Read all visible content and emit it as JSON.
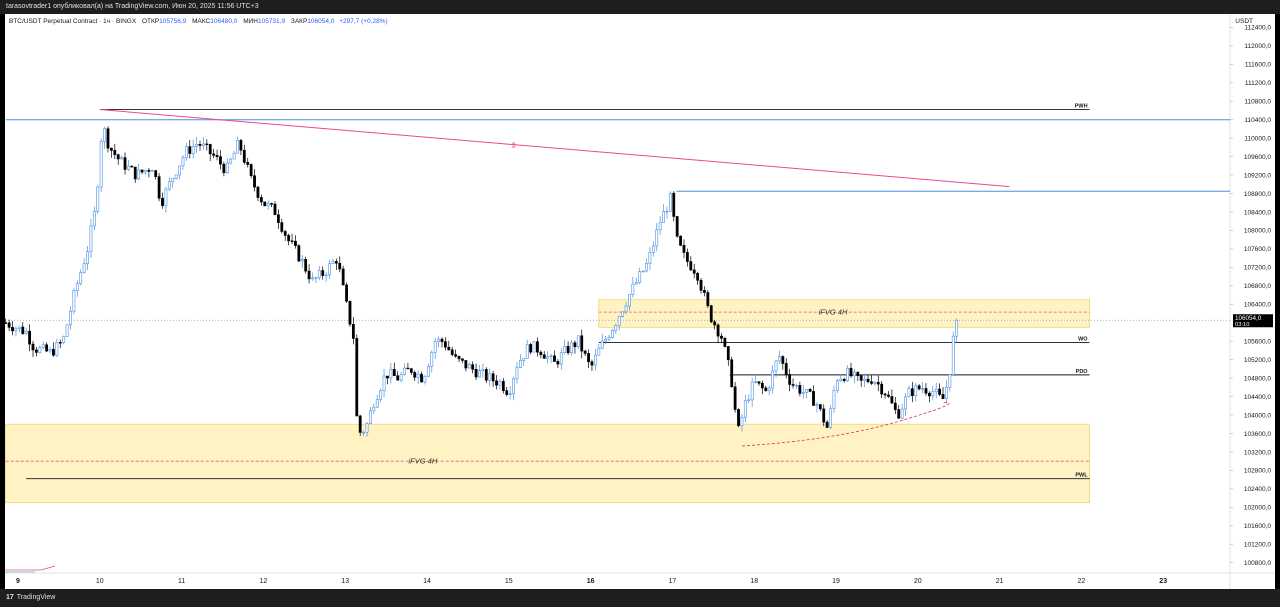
{
  "topbar": {
    "text": "tarasovtrader1 опубликовал(а) на TradingView.com, Июн 20, 2025 11:56 UTC+3"
  },
  "header": {
    "symbol": "BTC/USDT Perpetual Contract · 1ч · BINGX",
    "open_label": "ОТКР",
    "open_value": "105756,9",
    "high_label": "МАКС",
    "high_value": "106480,0",
    "low_label": "МИН",
    "low_value": "105731,9",
    "close_label": "ЗАКР",
    "close_value": "106054,0",
    "change": "+297,7 (+0,28%)"
  },
  "currency": "USDT",
  "brand": {
    "logo": "17",
    "name": "TradingView"
  },
  "colors": {
    "up": "#4a90e2",
    "down": "#000000",
    "zone": "#fff3c4",
    "zone_border": "#f2d27a",
    "trend": "#e84a8a",
    "level": "#4a90e2"
  },
  "chart_data": {
    "type": "candlestick",
    "price_range": [
      100600,
      112900
    ],
    "y_ticks": [
      {
        "v": 112400,
        "t": "112400,0"
      },
      {
        "v": 112000,
        "t": "112000,0"
      },
      {
        "v": 111600,
        "t": "111600,0"
      },
      {
        "v": 111200,
        "t": "111200,0"
      },
      {
        "v": 110800,
        "t": "110800,0"
      },
      {
        "v": 110400,
        "t": "110400,0"
      },
      {
        "v": 110000,
        "t": "110000,0"
      },
      {
        "v": 109600,
        "t": "109600,0"
      },
      {
        "v": 109200,
        "t": "109200,0"
      },
      {
        "v": 108800,
        "t": "108800,0"
      },
      {
        "v": 108400,
        "t": "108400,0"
      },
      {
        "v": 108000,
        "t": "108000,0"
      },
      {
        "v": 107600,
        "t": "107600,0"
      },
      {
        "v": 107200,
        "t": "107200,0"
      },
      {
        "v": 106800,
        "t": "106800,0"
      },
      {
        "v": 106400,
        "t": "106400,0"
      },
      {
        "v": 105600,
        "t": "105600,0"
      },
      {
        "v": 105200,
        "t": "105200,0"
      },
      {
        "v": 104800,
        "t": "104800,0"
      },
      {
        "v": 104400,
        "t": "104400,0"
      },
      {
        "v": 104000,
        "t": "104000,0"
      },
      {
        "v": 103600,
        "t": "103600,0"
      },
      {
        "v": 103200,
        "t": "103200,0"
      },
      {
        "v": 102800,
        "t": "102800,0"
      },
      {
        "v": 102400,
        "t": "102400,0"
      },
      {
        "v": 102000,
        "t": "102000,0"
      },
      {
        "v": 101600,
        "t": "101600,0"
      },
      {
        "v": 101200,
        "t": "101200,0"
      },
      {
        "v": 100800,
        "t": "100800,0"
      }
    ],
    "x_range_days": [
      8.85,
      23.9
    ],
    "x_ticks": [
      {
        "d": 9,
        "t": "9",
        "bold": true
      },
      {
        "d": 10,
        "t": "10"
      },
      {
        "d": 11,
        "t": "11"
      },
      {
        "d": 12,
        "t": "12"
      },
      {
        "d": 13,
        "t": "13"
      },
      {
        "d": 14,
        "t": "14"
      },
      {
        "d": 15,
        "t": "15"
      },
      {
        "d": 16,
        "t": "16",
        "bold": true
      },
      {
        "d": 17,
        "t": "17"
      },
      {
        "d": 18,
        "t": "18"
      },
      {
        "d": 19,
        "t": "19"
      },
      {
        "d": 20,
        "t": "20"
      },
      {
        "d": 21,
        "t": "21"
      },
      {
        "d": 22,
        "t": "22"
      },
      {
        "d": 23,
        "t": "23",
        "bold": true
      }
    ],
    "current_price": {
      "value": 106054,
      "label": "106054,0",
      "countdown": "03:10"
    },
    "zones": [
      {
        "name": "iFVG 4H",
        "label": "iFVG 4H",
        "top": 106500,
        "bottom": 105900,
        "mid": 106230,
        "from": 16.1,
        "to": 22.1
      },
      {
        "name": "iFVG 4H",
        "label": "iFVG 4H",
        "top": 103800,
        "bottom": 102100,
        "mid": 103000,
        "from": 8.85,
        "to": 22.1
      }
    ],
    "levels": [
      {
        "label": "PWH",
        "price": 110620,
        "from": 10.0,
        "to": 22.1,
        "color": "#131722"
      },
      {
        "label": "WO",
        "price": 105570,
        "from": 16.1,
        "to": 22.1,
        "color": "#131722"
      },
      {
        "label": "PDO",
        "price": 104870,
        "from": 17.7,
        "to": 22.1,
        "color": "#131722"
      },
      {
        "label": "PWL",
        "price": 102620,
        "from": 9.1,
        "to": 22.1,
        "color": "#131722"
      },
      {
        "label": "",
        "price": 110400,
        "from": 8.85,
        "to": 23.9,
        "color": "#4a90e2"
      },
      {
        "label": "",
        "price": 108850,
        "from": 17.05,
        "to": 23.9,
        "color": "#4a90e2"
      }
    ],
    "trendline": {
      "label": "$",
      "from": {
        "d": 10.0,
        "p": 110620
      },
      "to": {
        "d": 21.12,
        "p": 108950
      }
    },
    "dashed_curve": [
      {
        "d": 17.85,
        "p": 103330
      },
      {
        "d": 19.0,
        "p": 103500
      },
      {
        "d": 19.8,
        "p": 103880
      },
      {
        "d": 20.3,
        "p": 104270
      }
    ],
    "close_path": [
      [
        8.85,
        106000
      ],
      [
        9.1,
        105800
      ],
      [
        9.2,
        105450
      ],
      [
        9.4,
        105350
      ],
      [
        9.55,
        105600
      ],
      [
        9.7,
        106700
      ],
      [
        9.85,
        107600
      ],
      [
        9.95,
        108500
      ],
      [
        10.03,
        110300
      ],
      [
        10.12,
        109800
      ],
      [
        10.25,
        109500
      ],
      [
        10.45,
        109200
      ],
      [
        10.65,
        109400
      ],
      [
        10.75,
        108600
      ],
      [
        10.9,
        109200
      ],
      [
        11.05,
        109700
      ],
      [
        11.2,
        109900
      ],
      [
        11.4,
        109600
      ],
      [
        11.55,
        109300
      ],
      [
        11.7,
        109900
      ],
      [
        11.85,
        109100
      ],
      [
        12.0,
        108600
      ],
      [
        12.15,
        108400
      ],
      [
        12.3,
        107800
      ],
      [
        12.45,
        107400
      ],
      [
        12.6,
        106900
      ],
      [
        12.75,
        107100
      ],
      [
        12.9,
        107400
      ],
      [
        13.0,
        106500
      ],
      [
        13.1,
        105700
      ],
      [
        13.15,
        103600
      ],
      [
        13.25,
        103700
      ],
      [
        13.35,
        104300
      ],
      [
        13.5,
        104900
      ],
      [
        13.65,
        104800
      ],
      [
        13.8,
        105000
      ],
      [
        13.95,
        104800
      ],
      [
        14.1,
        105600
      ],
      [
        14.2,
        105600
      ],
      [
        14.35,
        105200
      ],
      [
        14.55,
        105000
      ],
      [
        14.75,
        104800
      ],
      [
        14.9,
        104700
      ],
      [
        15.0,
        104500
      ],
      [
        15.1,
        105100
      ],
      [
        15.25,
        105500
      ],
      [
        15.4,
        105400
      ],
      [
        15.55,
        105100
      ],
      [
        15.7,
        105400
      ],
      [
        15.85,
        105600
      ],
      [
        16.0,
        105000
      ],
      [
        16.1,
        105400
      ],
      [
        16.3,
        106000
      ],
      [
        16.5,
        106700
      ],
      [
        16.7,
        107300
      ],
      [
        16.85,
        108200
      ],
      [
        16.98,
        108700
      ],
      [
        17.05,
        107800
      ],
      [
        17.15,
        107400
      ],
      [
        17.3,
        107100
      ],
      [
        17.45,
        106200
      ],
      [
        17.6,
        105700
      ],
      [
        17.72,
        104800
      ],
      [
        17.8,
        103600
      ],
      [
        17.9,
        104300
      ],
      [
        18.0,
        104700
      ],
      [
        18.15,
        104500
      ],
      [
        18.3,
        105300
      ],
      [
        18.45,
        104700
      ],
      [
        18.6,
        104500
      ],
      [
        18.75,
        104300
      ],
      [
        18.9,
        103700
      ],
      [
        19.0,
        104800
      ],
      [
        19.15,
        104900
      ],
      [
        19.3,
        104700
      ],
      [
        19.45,
        104800
      ],
      [
        19.6,
        104500
      ],
      [
        19.75,
        104000
      ],
      [
        19.9,
        104500
      ],
      [
        20.05,
        104600
      ],
      [
        20.2,
        104500
      ],
      [
        20.3,
        104300
      ],
      [
        20.38,
        104800
      ],
      [
        20.45,
        105900
      ],
      [
        20.48,
        106054
      ]
    ]
  }
}
